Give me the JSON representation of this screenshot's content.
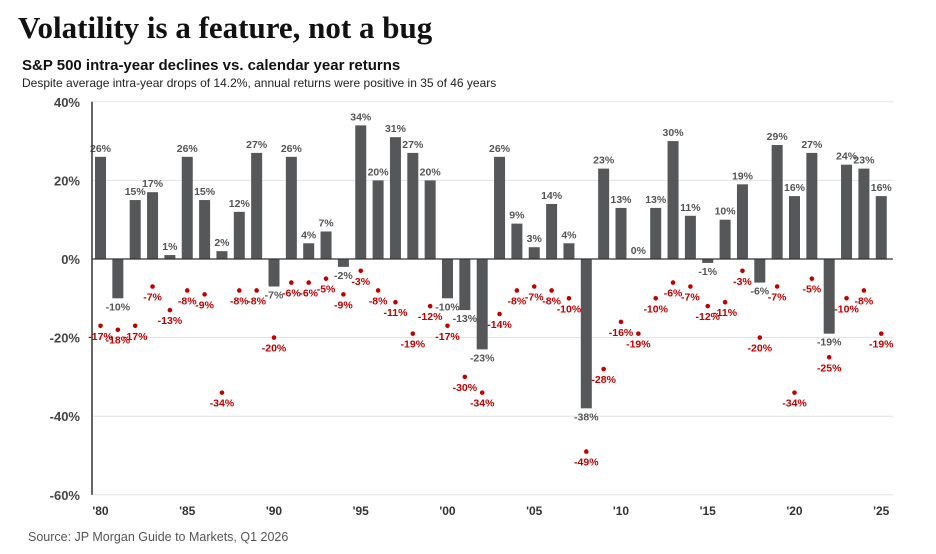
{
  "chart_data": {
    "type": "bar",
    "title": "Volatility is a feature, not a bug",
    "subtitle": "S&P 500 intra-year declines vs. calendar year returns",
    "description": "Despite average intra-year drops of 14.2%, annual returns were positive in 35 of 46 years",
    "source": "Source: JP Morgan Guide to Markets, Q1 2026",
    "ylim": [
      -60,
      40
    ],
    "yticks": [
      "40%",
      "20%",
      "0%",
      "-20%",
      "-40%",
      "-60%"
    ],
    "ytick_values": [
      40,
      20,
      0,
      -20,
      -40,
      -60
    ],
    "xticks": [
      "'80",
      "'85",
      "'90",
      "'95",
      "'00",
      "'05",
      "'10",
      "'15",
      "'20",
      "'25"
    ],
    "grid": true,
    "colors": {
      "returns": "#555759",
      "declines": "#c00000"
    },
    "years": [
      1980,
      1981,
      1982,
      1983,
      1984,
      1985,
      1986,
      1987,
      1988,
      1989,
      1990,
      1991,
      1992,
      1993,
      1994,
      1995,
      1996,
      1997,
      1998,
      1999,
      2000,
      2001,
      2002,
      2003,
      2004,
      2005,
      2006,
      2007,
      2008,
      2009,
      2010,
      2011,
      2012,
      2013,
      2014,
      2015,
      2016,
      2017,
      2018,
      2019,
      2020,
      2021,
      2022,
      2023,
      2024,
      2025
    ],
    "series": [
      {
        "type": "bar",
        "values": [
          26,
          -10,
          15,
          17,
          1,
          26,
          15,
          2,
          12,
          27,
          -7,
          26,
          4,
          7,
          -2,
          34,
          20,
          31,
          27,
          20,
          -10,
          -13,
          -23,
          26,
          9,
          3,
          14,
          4,
          -38,
          23,
          13,
          0,
          13,
          30,
          11,
          -1,
          10,
          19,
          -6,
          29,
          16,
          27,
          -19,
          24,
          23,
          16
        ]
      },
      {
        "type": "scatter",
        "values": [
          -17,
          -18,
          -17,
          -7,
          -13,
          -8,
          -9,
          -34,
          -8,
          -8,
          -20,
          -6,
          -6,
          -5,
          -9,
          -3,
          -8,
          -11,
          -19,
          -12,
          -17,
          -30,
          -34,
          -14,
          -8,
          -7,
          -8,
          -10,
          -49,
          -28,
          -16,
          -19,
          -10,
          -6,
          -7,
          -12,
          -11,
          -3,
          -20,
          -7,
          -34,
          -5,
          -25,
          -10,
          -8,
          -19
        ]
      }
    ]
  }
}
